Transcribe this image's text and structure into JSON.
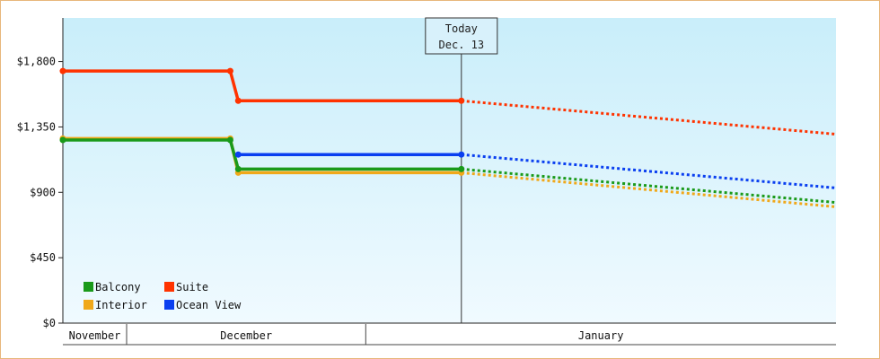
{
  "chart_data": {
    "type": "line",
    "y_ticks": [
      "$0",
      "$450",
      "$900",
      "$1,350",
      "$1,800"
    ],
    "ylim": [
      0,
      2100
    ],
    "months": [
      "November",
      "December",
      "January"
    ],
    "today": {
      "line1": "Today",
      "line2": "Dec. 13"
    },
    "x_domain": [
      "2023-10-24",
      "2024-01-29"
    ],
    "grid": false,
    "legend_position": "bottom-left",
    "series": [
      {
        "name": "Balcony",
        "color": "#1a9a1a",
        "points": [
          [
            "2023-10-24",
            1260
          ],
          [
            "2023-11-14",
            1260
          ],
          [
            "2023-11-15",
            1060
          ],
          [
            "2023-12-13",
            1060
          ]
        ],
        "forecast": [
          [
            "2023-12-13",
            1060
          ],
          [
            "2024-01-29",
            830
          ]
        ]
      },
      {
        "name": "Interior",
        "color": "#f0a81a",
        "points": [
          [
            "2023-10-24",
            1270
          ],
          [
            "2023-11-14",
            1270
          ],
          [
            "2023-11-15",
            1035
          ],
          [
            "2023-12-13",
            1035
          ]
        ],
        "forecast": [
          [
            "2023-12-13",
            1035
          ],
          [
            "2024-01-29",
            800
          ]
        ]
      },
      {
        "name": "Suite",
        "color": "#ff3300",
        "points": [
          [
            "2023-10-24",
            1735
          ],
          [
            "2023-11-14",
            1735
          ],
          [
            "2023-11-15",
            1530
          ],
          [
            "2023-12-13",
            1530
          ]
        ],
        "forecast": [
          [
            "2023-12-13",
            1530
          ],
          [
            "2024-01-29",
            1300
          ]
        ]
      },
      {
        "name": "Ocean View",
        "color": "#0a3ff0",
        "points": [
          [
            "2023-11-15",
            1160
          ],
          [
            "2023-12-13",
            1160
          ]
        ],
        "forecast": [
          [
            "2023-12-13",
            1160
          ],
          [
            "2024-01-29",
            930
          ]
        ]
      }
    ]
  }
}
